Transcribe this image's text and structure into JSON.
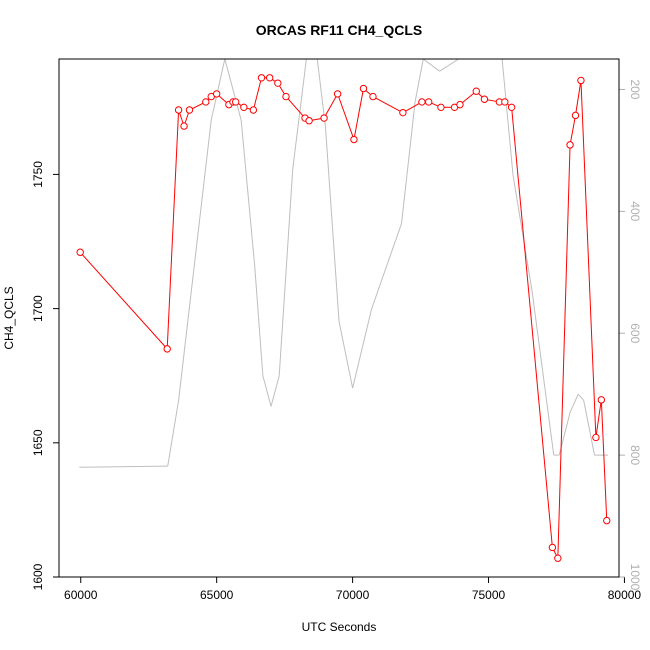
{
  "chart_data": {
    "type": "line",
    "title": "ORCAS RF11 CH4_QCLS",
    "xlabel": "UTC Seconds",
    "ylabel": "CH4_QCLS",
    "xlim": [
      59200,
      79800
    ],
    "ylim": [
      1600,
      1793
    ],
    "y2lim": [
      1000,
      150
    ],
    "y2_reversed": true,
    "x_ticks": [
      60000,
      65000,
      70000,
      75000,
      80000
    ],
    "y_ticks": [
      1600,
      1650,
      1700,
      1750
    ],
    "y2_ticks": [
      200,
      400,
      600,
      800,
      1000
    ],
    "grid": false,
    "series": [
      {
        "color": "#ff0000",
        "marker": "open-circle",
        "axis": "left",
        "x": [
          59980,
          63180,
          63600,
          63800,
          64000,
          64600,
          64800,
          65000,
          65450,
          65600,
          65700,
          66000,
          66350,
          66650,
          66950,
          67250,
          67550,
          68250,
          68400,
          68950,
          69450,
          70050,
          70400,
          70750,
          71850,
          72550,
          72800,
          73250,
          73750,
          73950,
          74550,
          74850,
          75400,
          75600,
          75850,
          77350,
          77550,
          78000,
          78200,
          78400,
          78950,
          79150,
          79350
        ],
        "y": [
          1721,
          1685,
          1774,
          1768,
          1774,
          1777,
          1779,
          1780,
          1776,
          1777,
          1777,
          1775,
          1774,
          1786,
          1786,
          1784,
          1779,
          1771,
          1770,
          1771,
          1780,
          1763,
          1782,
          1779,
          1773,
          1777,
          1777,
          1775,
          1775,
          1776,
          1781,
          1778,
          1777,
          1777,
          1775,
          1611,
          1607,
          1761,
          1772,
          1785,
          1652,
          1666,
          1621
        ]
      },
      {
        "color": "#bebebe",
        "marker": "none",
        "axis": "right",
        "x": [
          59950,
          63200,
          63600,
          64800,
          65300,
          65900,
          66400,
          66700,
          67000,
          67300,
          67800,
          68300,
          68700,
          69000,
          69500,
          70000,
          70700,
          71800,
          72300,
          72600,
          73200,
          73900,
          74500,
          74800,
          75200,
          75500,
          75900,
          76600,
          77400,
          77600,
          78000,
          78300,
          78500,
          78900,
          79400
        ],
        "y": [
          820,
          818,
          710,
          250,
          150,
          250,
          490,
          670,
          720,
          670,
          330,
          150,
          150,
          260,
          580,
          690,
          560,
          420,
          220,
          150,
          170,
          150,
          150,
          150,
          150,
          150,
          340,
          530,
          800,
          800,
          730,
          700,
          710,
          800,
          800
        ]
      }
    ]
  }
}
